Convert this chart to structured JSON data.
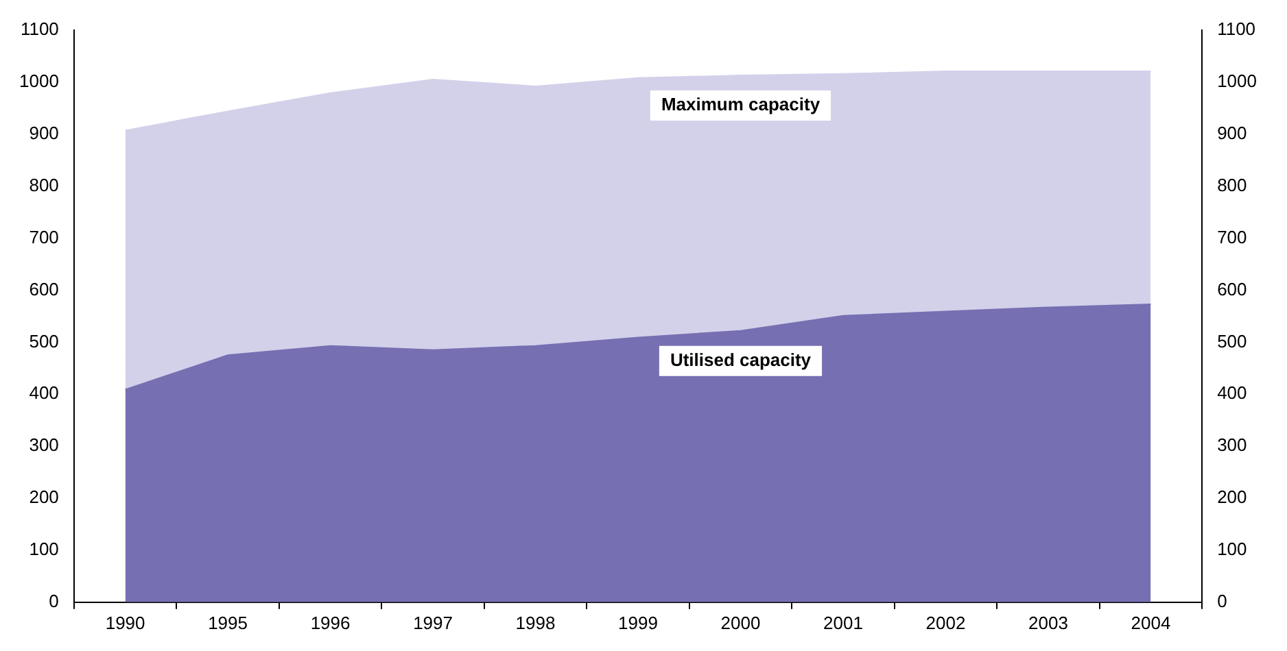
{
  "chart_data": {
    "type": "area",
    "categories": [
      "1990",
      "1995",
      "1996",
      "1997",
      "1998",
      "1999",
      "2000",
      "2001",
      "2002",
      "2003",
      "2004"
    ],
    "series": [
      {
        "name": "Utilised capacity",
        "color": "#7670b2",
        "values": [
          409,
          475,
          493,
          485,
          493,
          509,
          522,
          551,
          559,
          567,
          573
        ]
      },
      {
        "name": "Maximum capacity",
        "color": "#d3d1ea",
        "values": [
          907,
          944,
          979,
          1005,
          992,
          1008,
          1013,
          1016,
          1021,
          1021,
          1021
        ]
      }
    ],
    "ylim": [
      0,
      1100
    ],
    "yticks": [
      0,
      100,
      200,
      300,
      400,
      500,
      600,
      700,
      800,
      900,
      1000,
      1100
    ],
    "y2lim": [
      0,
      1100
    ],
    "y2ticks": [
      0,
      100,
      200,
      300,
      400,
      500,
      600,
      700,
      800,
      900,
      1000,
      1100
    ],
    "grid": false,
    "legend": false
  }
}
